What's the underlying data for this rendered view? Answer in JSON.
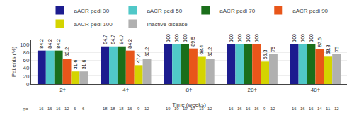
{
  "chart_data": {
    "type": "bar",
    "categories": [
      "2†",
      "4†",
      "8†",
      "28†",
      "48†"
    ],
    "series": [
      {
        "name": "aACR pedi 30",
        "color": "#1c1c8f",
        "values": [
          84.2,
          94.7,
          100,
          100,
          100
        ],
        "n": [
          16,
          18,
          19,
          16,
          16
        ]
      },
      {
        "name": "aACR pedi 50",
        "color": "#50c8c8",
        "values": [
          84.2,
          94.7,
          100,
          100,
          100
        ],
        "n": [
          16,
          18,
          19,
          16,
          16
        ]
      },
      {
        "name": "aACR pedi 70",
        "color": "#1a6e1a",
        "values": [
          84.2,
          94.7,
          100,
          100,
          100
        ],
        "n": [
          16,
          18,
          19,
          16,
          16
        ]
      },
      {
        "name": "aACR pedi 90",
        "color": "#e8561a",
        "values": [
          63.2,
          84.2,
          89.5,
          100,
          87.5
        ],
        "n": [
          12,
          16,
          17,
          16,
          14
        ]
      },
      {
        "name": "aACR pedi 100",
        "color": "#d4d400",
        "values": [
          31.6,
          47.4,
          68.4,
          56.3,
          68.8
        ],
        "n": [
          6,
          9,
          13,
          9,
          11
        ]
      },
      {
        "name": "Inactive disease",
        "color": "#b0b0b0",
        "values": [
          31.6,
          63.2,
          63.2,
          75.0,
          75.0
        ],
        "n": [
          6,
          12,
          12,
          12,
          12
        ]
      }
    ],
    "n_label": "n=",
    "xlabel": "Time (weeks)",
    "ylabel": "Patients (%)",
    "ylim": [
      0,
      112
    ],
    "yticks": [
      0,
      20,
      40,
      60,
      80,
      100
    ],
    "grid": true,
    "legend": "top",
    "data_labels": true
  }
}
